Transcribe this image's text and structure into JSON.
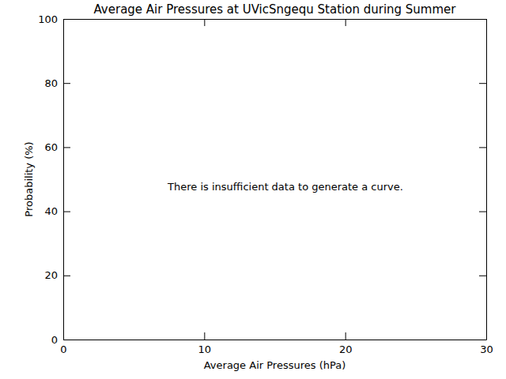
{
  "chart_data": {
    "type": "line",
    "title": "Average Air Pressures at UVicSngequ Station during Summer",
    "x_label": "Average Air Pressures (hPa)",
    "y_label": "Probability (%)",
    "annotation": "There is insufficient data to generate a curve.",
    "xlim": [
      0,
      30
    ],
    "ylim": [
      0,
      100
    ],
    "xticks": [
      0,
      10,
      20,
      30
    ],
    "yticks": [
      0,
      20,
      40,
      60,
      80,
      100
    ]
  }
}
